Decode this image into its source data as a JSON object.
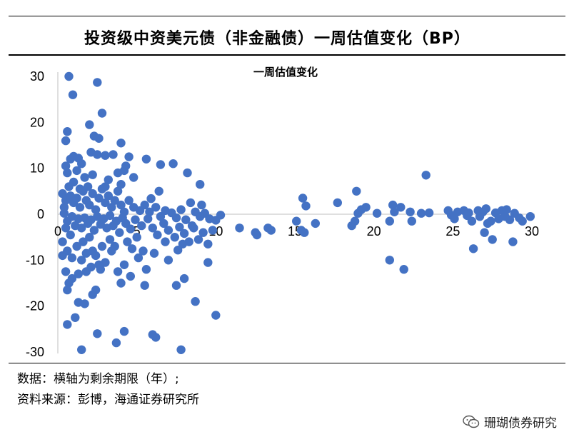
{
  "header": {
    "title": "投资级中资美元债（非金融债）一周估值变化（BP）"
  },
  "notes": {
    "line1": "数据：横轴为剩余期限（年）;",
    "line2": "资料来源：彭博，海通证券研究所"
  },
  "watermark": {
    "text": "珊瑚债券研究",
    "icon": "wechat-icon"
  },
  "colors": {
    "marker": "#4472C4",
    "axis": "#bfbfbf"
  },
  "chart_data": {
    "type": "scatter",
    "title": "一周估值变化",
    "xlabel": "",
    "ylabel": "",
    "xlim": [
      0,
      30
    ],
    "ylim": [
      -30,
      30
    ],
    "xticks": [
      0,
      5,
      10,
      15,
      20,
      25,
      30
    ],
    "yticks": [
      30,
      20,
      10,
      0,
      -10,
      -20,
      -30
    ],
    "grid": false,
    "legend": "none",
    "marker_color": "#4472C4",
    "series": [
      {
        "points": [
          [
            0.7,
            30
          ],
          [
            0.95,
            26
          ],
          [
            2.5,
            28.7
          ],
          [
            2.8,
            22
          ],
          [
            0.6,
            18
          ],
          [
            2.0,
            19.5
          ],
          [
            2.3,
            17
          ],
          [
            2.6,
            16.5
          ],
          [
            4.0,
            15.5
          ],
          [
            0.5,
            16
          ],
          [
            0.5,
            10.5
          ],
          [
            0.8,
            12
          ],
          [
            1.0,
            12.6
          ],
          [
            1.3,
            12.2
          ],
          [
            1.5,
            11
          ],
          [
            2.1,
            13.5
          ],
          [
            2.5,
            13
          ],
          [
            3.0,
            12.8
          ],
          [
            3.5,
            13
          ],
          [
            4.5,
            12.5
          ],
          [
            4.3,
            10.5
          ],
          [
            5.6,
            12
          ],
          [
            6.5,
            10.8
          ],
          [
            7.3,
            11
          ],
          [
            8.2,
            9
          ],
          [
            9.0,
            6.5
          ],
          [
            0.6,
            9
          ],
          [
            1.2,
            9.5
          ],
          [
            1.7,
            8
          ],
          [
            2.2,
            8.6
          ],
          [
            3.2,
            7.5
          ],
          [
            4.8,
            8
          ],
          [
            6.4,
            5
          ],
          [
            3.8,
            9
          ],
          [
            4.2,
            9.5
          ],
          [
            1.9,
            6
          ],
          [
            0.3,
            4.5
          ],
          [
            0.5,
            3
          ],
          [
            0.8,
            4
          ],
          [
            1.0,
            2.5
          ],
          [
            1.2,
            3.5
          ],
          [
            1.4,
            1.5
          ],
          [
            1.6,
            5
          ],
          [
            1.8,
            3
          ],
          [
            2.0,
            2
          ],
          [
            2.2,
            4.5
          ],
          [
            2.4,
            1
          ],
          [
            2.6,
            3.5
          ],
          [
            2.8,
            5.5
          ],
          [
            3.0,
            2.5
          ],
          [
            3.2,
            4
          ],
          [
            3.4,
            1.5
          ],
          [
            3.6,
            3
          ],
          [
            3.8,
            5
          ],
          [
            4.0,
            2
          ],
          [
            4.2,
            0.5
          ],
          [
            4.5,
            3
          ],
          [
            4.8,
            1.5
          ],
          [
            5.2,
            0.8
          ],
          [
            5.5,
            2
          ],
          [
            5.8,
            0.5
          ],
          [
            6.2,
            1.5
          ],
          [
            6.5,
            -0.5
          ],
          [
            6.8,
            0.8
          ],
          [
            7.2,
            0.3
          ],
          [
            7.5,
            -0.8
          ],
          [
            7.8,
            1
          ],
          [
            8.1,
            -1.2
          ],
          [
            8.4,
            2.5
          ],
          [
            8.7,
            0.5
          ],
          [
            9.0,
            -0.5
          ],
          [
            9.3,
            0.2
          ],
          [
            9.6,
            -1
          ],
          [
            10.0,
            -1.3
          ],
          [
            10.3,
            -0.2
          ],
          [
            5.9,
            3.4
          ],
          [
            0.4,
            0.2
          ],
          [
            0.6,
            -1.5
          ],
          [
            0.9,
            -0.5
          ],
          [
            1.1,
            -2.5
          ],
          [
            1.3,
            -1
          ],
          [
            1.5,
            -3
          ],
          [
            1.7,
            -0.8
          ],
          [
            1.9,
            -2
          ],
          [
            2.1,
            -1.2
          ],
          [
            2.3,
            -3.5
          ],
          [
            2.5,
            -0.5
          ],
          [
            2.7,
            -2.2
          ],
          [
            2.9,
            -1
          ],
          [
            3.1,
            -3
          ],
          [
            3.3,
            -0.3
          ],
          [
            3.5,
            -2.5
          ],
          [
            3.7,
            -1.5
          ],
          [
            3.9,
            -4
          ],
          [
            4.1,
            -0.8
          ],
          [
            4.3,
            -2
          ],
          [
            4.6,
            -3.2
          ],
          [
            4.9,
            -1.2
          ],
          [
            5.3,
            -2.5
          ],
          [
            5.7,
            -1
          ],
          [
            6.0,
            -3
          ],
          [
            6.3,
            -4.5
          ],
          [
            6.7,
            -2
          ],
          [
            7.0,
            -3.5
          ],
          [
            7.4,
            -5
          ],
          [
            7.7,
            -2.8
          ],
          [
            8.0,
            -4.2
          ],
          [
            8.3,
            -6
          ],
          [
            8.6,
            -3
          ],
          [
            8.9,
            -5.5
          ],
          [
            9.2,
            -4
          ],
          [
            9.5,
            -6.5
          ],
          [
            9.8,
            -3.5
          ],
          [
            5.0,
            -5
          ],
          [
            4.4,
            -6
          ],
          [
            3.6,
            -7
          ],
          [
            0.3,
            -6
          ],
          [
            0.6,
            -8
          ],
          [
            0.9,
            -9.5
          ],
          [
            1.2,
            -7
          ],
          [
            1.5,
            -10
          ],
          [
            1.8,
            -8.5
          ],
          [
            2.1,
            -11.5
          ],
          [
            2.4,
            -9
          ],
          [
            2.7,
            -12
          ],
          [
            3.0,
            -10.5
          ],
          [
            3.4,
            -8
          ],
          [
            3.8,
            -12.5
          ],
          [
            4.2,
            -11
          ],
          [
            4.6,
            -13.5
          ],
          [
            5.1,
            -9.5
          ],
          [
            5.6,
            -12
          ],
          [
            6.1,
            -8.5
          ],
          [
            7.0,
            -10
          ],
          [
            7.6,
            -7.8
          ],
          [
            9.5,
            -10.5
          ],
          [
            0.5,
            -12.5
          ],
          [
            0.9,
            -14
          ],
          [
            1.3,
            -13
          ],
          [
            1.8,
            -12.5
          ],
          [
            2.6,
            -11
          ],
          [
            0.7,
            -15
          ],
          [
            4.0,
            -15
          ],
          [
            5.5,
            -15.5
          ],
          [
            7.5,
            -15.5
          ],
          [
            8.0,
            -14
          ],
          [
            0.6,
            -16.5
          ],
          [
            2.4,
            -16.5
          ],
          [
            2.2,
            -17.5
          ],
          [
            1.7,
            -19.5
          ],
          [
            1.3,
            -19.2
          ],
          [
            8.7,
            -19
          ],
          [
            1.1,
            -22.5
          ],
          [
            10.0,
            -22
          ],
          [
            0.6,
            -24
          ],
          [
            2.5,
            -26
          ],
          [
            4.2,
            -25.5
          ],
          [
            6.0,
            -26.2
          ],
          [
            6.2,
            -26.8
          ],
          [
            3.7,
            -28
          ],
          [
            1.5,
            -29.5
          ],
          [
            7.8,
            -29.5
          ],
          [
            0.4,
            1.5
          ],
          [
            0.5,
            -3
          ],
          [
            0.7,
            6
          ],
          [
            1.0,
            7
          ],
          [
            2.0,
            -5
          ],
          [
            3.0,
            6
          ],
          [
            1.6,
            -6
          ],
          [
            2.8,
            -7
          ],
          [
            0.8,
            -4.5
          ],
          [
            1.4,
            5.5
          ],
          [
            2.2,
            -8
          ],
          [
            3.3,
            -5.5
          ],
          [
            4.7,
            -7.5
          ],
          [
            5.4,
            -8
          ],
          [
            6.8,
            -6
          ],
          [
            7.9,
            -6.5
          ],
          [
            8.5,
            -2.5
          ],
          [
            9.1,
            2
          ],
          [
            0.3,
            -9
          ],
          [
            4.0,
            6.5
          ],
          [
            11.5,
            -3
          ],
          [
            12.5,
            -4
          ],
          [
            12.6,
            -4.5
          ],
          [
            13.3,
            -3
          ],
          [
            13.5,
            -3.5
          ],
          [
            15.1,
            -1.5
          ],
          [
            15.4,
            -3.5
          ],
          [
            15.6,
            -4
          ],
          [
            15.5,
            3.5
          ],
          [
            15.7,
            1.8
          ],
          [
            16.3,
            -2
          ],
          [
            17.7,
            2.5
          ],
          [
            18.6,
            -2.5
          ],
          [
            18.8,
            -1.5
          ],
          [
            19.0,
            0.2
          ],
          [
            19.2,
            1
          ],
          [
            19.5,
            1.5
          ],
          [
            20.2,
            0.2
          ],
          [
            18.9,
            5
          ],
          [
            21.0,
            -1.5
          ],
          [
            21.2,
            2
          ],
          [
            21.3,
            0.5
          ],
          [
            21.7,
            1.5
          ],
          [
            21.0,
            -10
          ],
          [
            21.9,
            -12
          ],
          [
            22.3,
            0.5
          ],
          [
            22.4,
            -1.5
          ],
          [
            23.0,
            0.2
          ],
          [
            23.5,
            0.3
          ],
          [
            23.3,
            8.5
          ],
          [
            24.7,
            0.8
          ],
          [
            25.1,
            -1
          ],
          [
            25.3,
            0.5
          ],
          [
            25.7,
            0.8
          ],
          [
            25.9,
            -0.3
          ],
          [
            26.2,
            -1.5
          ],
          [
            26.3,
            -7.5
          ],
          [
            26.7,
            -0.5
          ],
          [
            26.9,
            0.5
          ],
          [
            27.2,
            -2
          ],
          [
            27.4,
            -1.5
          ],
          [
            27.0,
            -4
          ],
          [
            27.5,
            -5.5
          ],
          [
            27.7,
            0.3
          ],
          [
            27.9,
            -1
          ],
          [
            28.1,
            0.8
          ],
          [
            28.3,
            -0.5
          ],
          [
            28.6,
            -1.2
          ],
          [
            28.9,
            0.2
          ],
          [
            29.2,
            -0.8
          ],
          [
            29.4,
            -1.5
          ],
          [
            28.8,
            -6
          ],
          [
            29.9,
            -0.5
          ],
          [
            26.0,
            0.3
          ],
          [
            24.9,
            -0.2
          ],
          [
            27.1,
            1.2
          ],
          [
            28.4,
            1
          ],
          [
            26.6,
            0.8
          ]
        ]
      }
    ]
  }
}
